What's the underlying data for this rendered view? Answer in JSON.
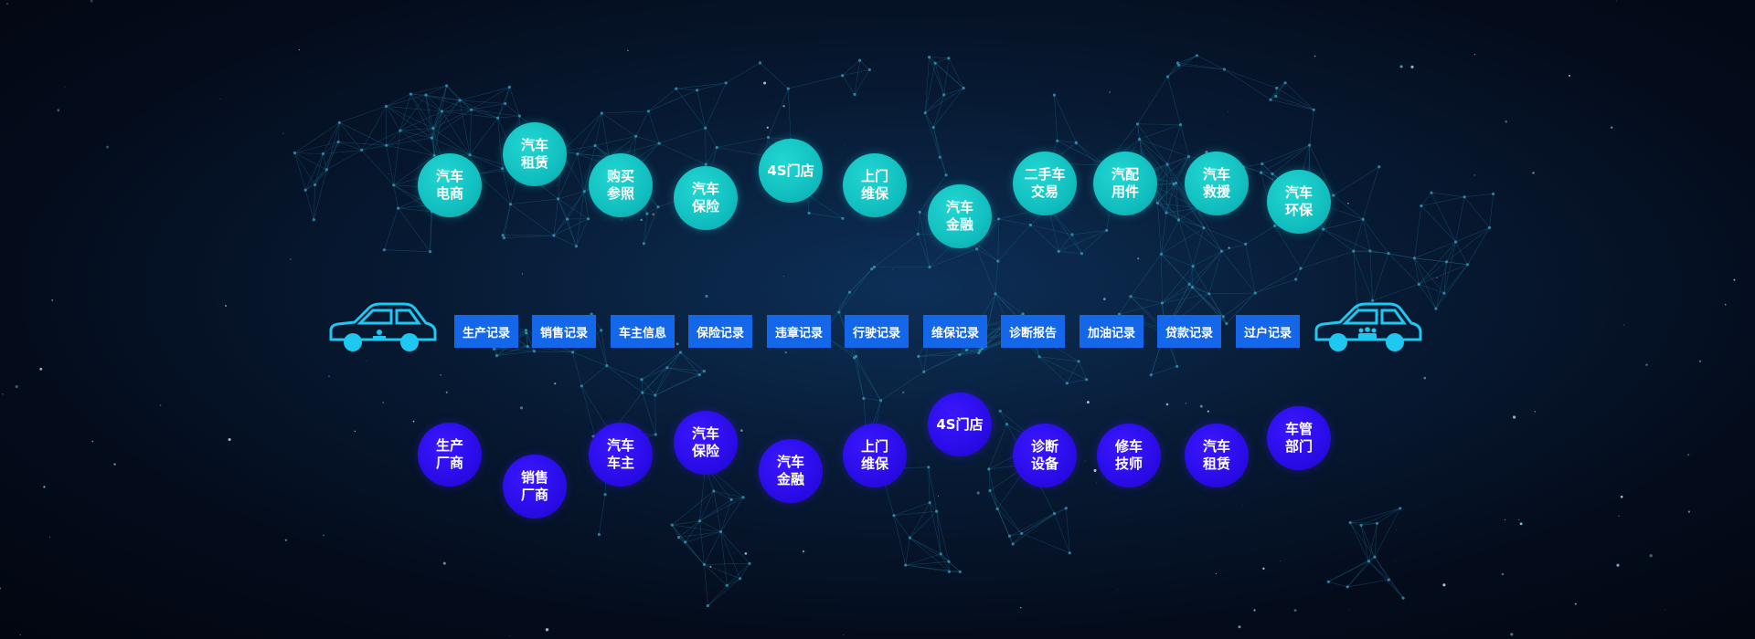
{
  "top_services": [
    {
      "label": "汽车\n电商"
    },
    {
      "label": "汽车\n租赁"
    },
    {
      "label": "购买\n参照"
    },
    {
      "label": "汽车\n保险"
    },
    {
      "label": "4S门店"
    },
    {
      "label": "上门\n维保"
    },
    {
      "label": "汽车\n金融"
    },
    {
      "label": "二手车\n交易"
    },
    {
      "label": "汽配\n用件"
    },
    {
      "label": "汽车\n救援"
    },
    {
      "label": "汽车\n环保"
    }
  ],
  "records": [
    "生产记录",
    "销售记录",
    "车主信息",
    "保险记录",
    "违章记录",
    "行驶记录",
    "维保记录",
    "诊断报告",
    "加油记录",
    "贷款记录",
    "过户记录"
  ],
  "bottom_parties": [
    {
      "label": "生产\n厂商"
    },
    {
      "label": "销售\n厂商"
    },
    {
      "label": "汽车\n车主"
    },
    {
      "label": "汽车\n保险"
    },
    {
      "label": "汽车\n金融"
    },
    {
      "label": "上门\n维保"
    },
    {
      "label": "4S门店"
    },
    {
      "label": "诊断\n设备"
    },
    {
      "label": "修车\n技师"
    },
    {
      "label": "汽车\n租赁"
    },
    {
      "label": "车管\n部门"
    }
  ],
  "icons": {
    "left_car": "car-icon",
    "right_car": "car-icon"
  },
  "colors": {
    "top_bubble": "#12bfc0",
    "bottom_bubble": "#2a0ce8",
    "record_box": "#1367e8",
    "car_outline": "#1ec8f0",
    "map_lines": "#1d6f8f"
  }
}
